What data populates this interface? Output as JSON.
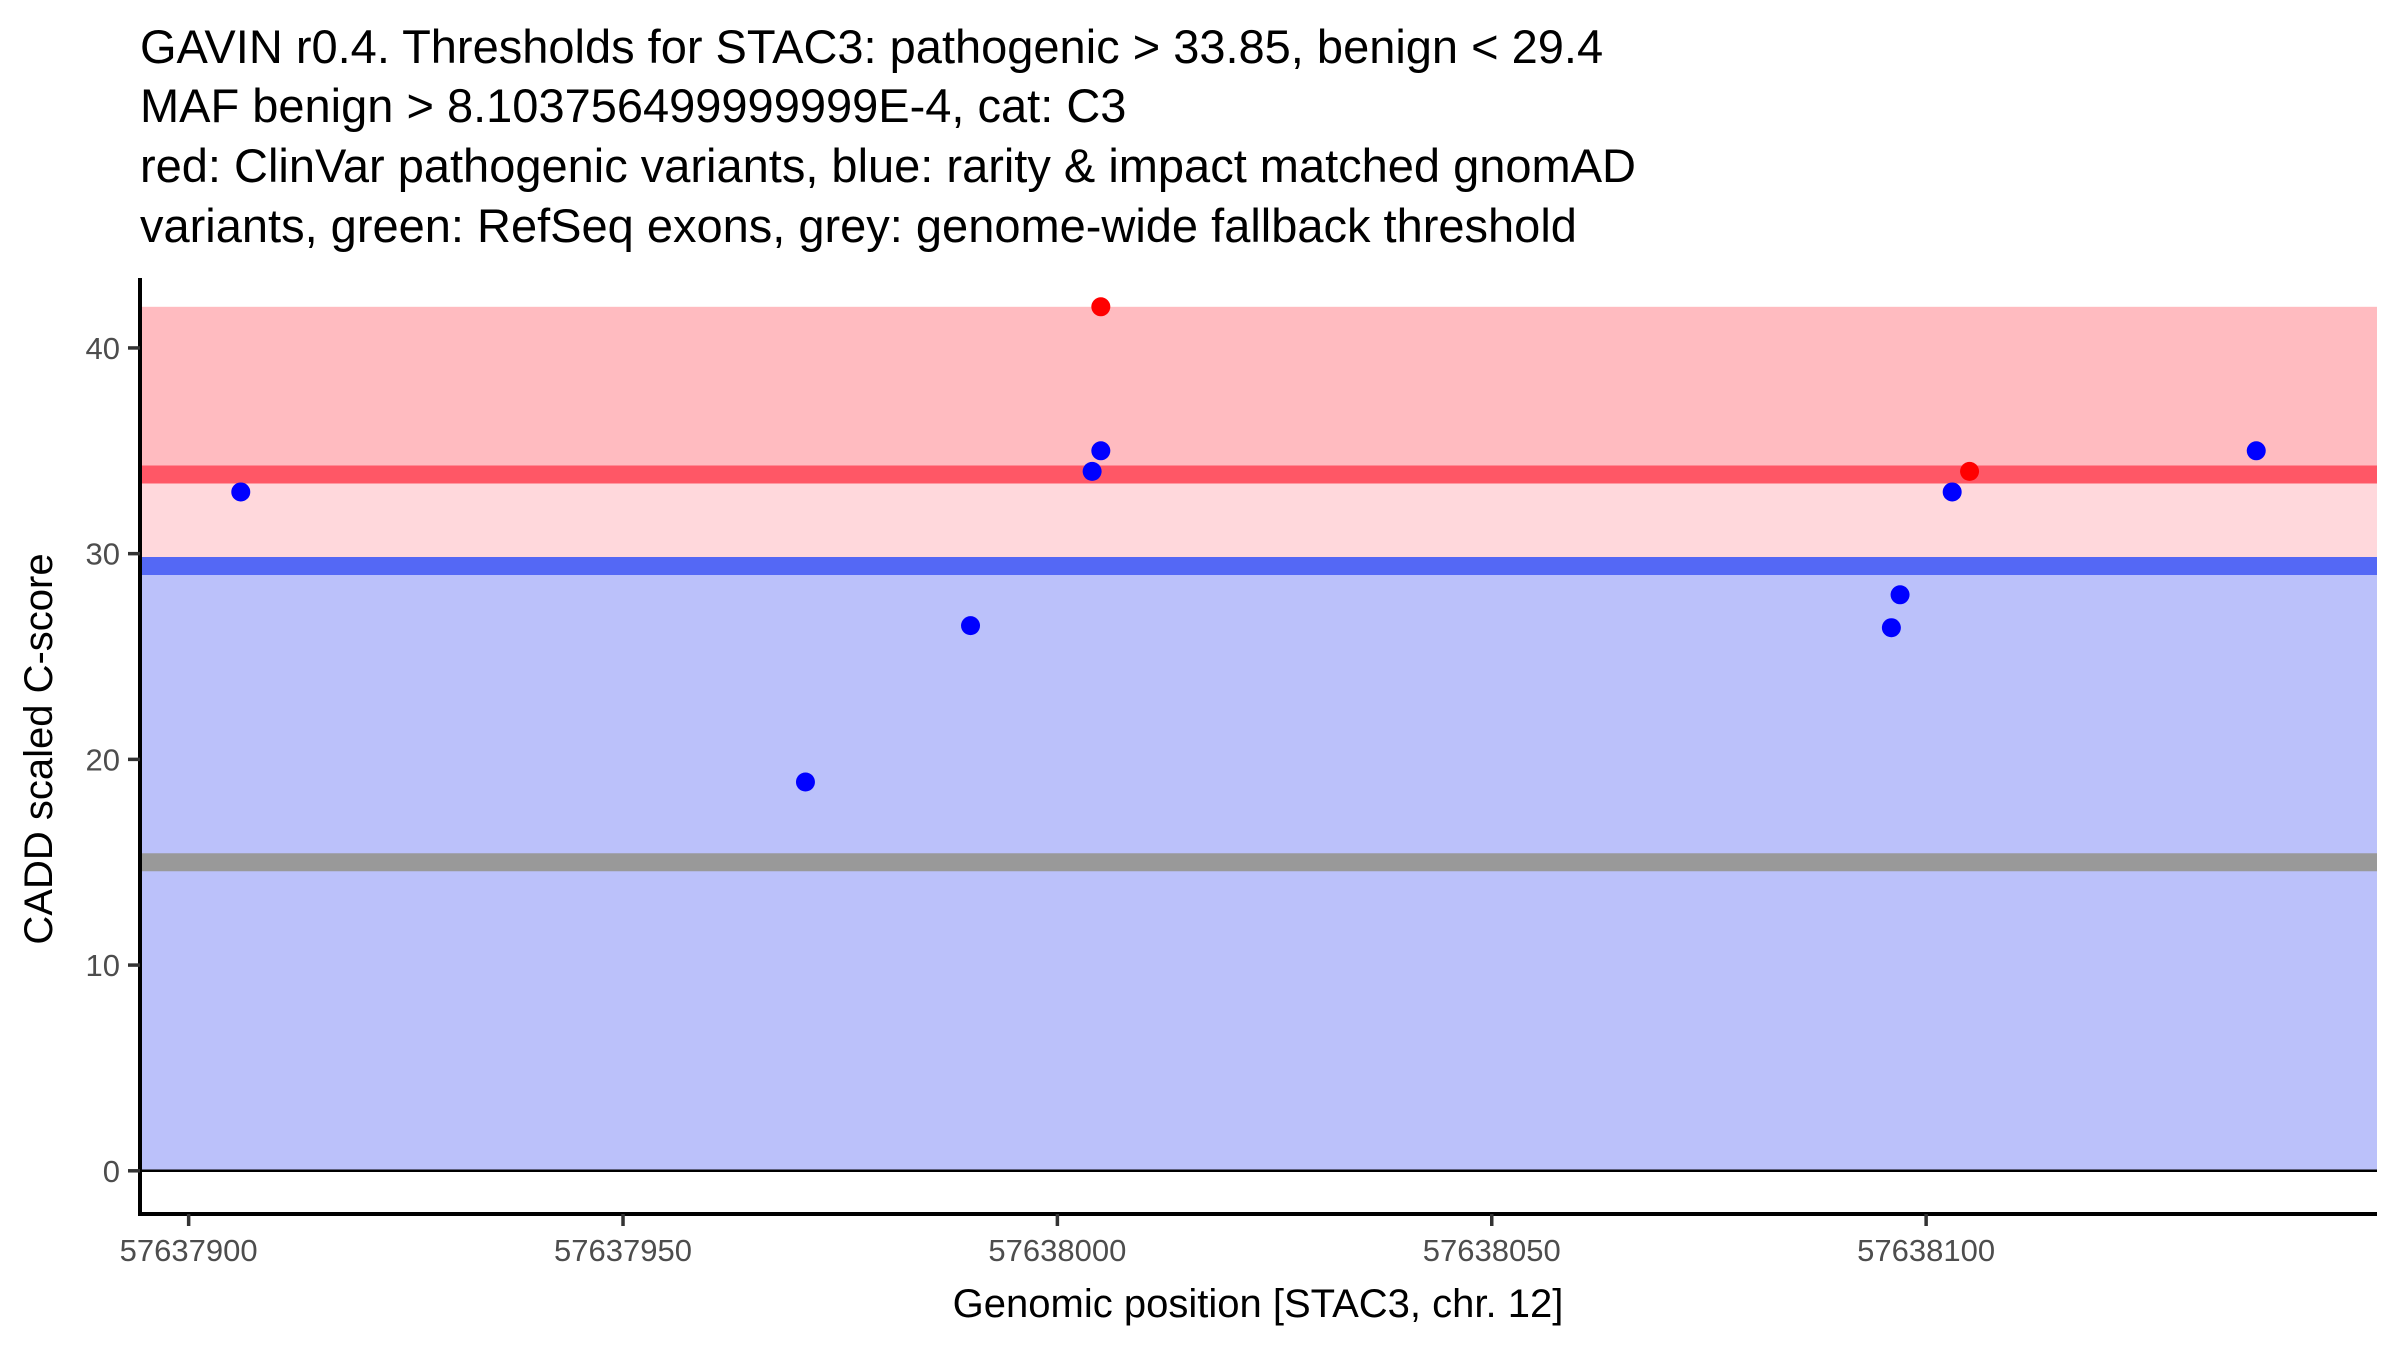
{
  "chart_data": {
    "type": "scatter",
    "title_lines": [
      "GAVIN r0.4. Thresholds for STAC3: pathogenic > 33.85, benign < 29.4",
      "MAF benign > 8.103756499999999E-4, cat: C3",
      "red: ClinVar pathogenic variants, blue: rarity & impact matched gnomAD",
      "variants, green: RefSeq exons, grey: genome-wide fallback threshold"
    ],
    "xlabel": "Genomic position [STAC3, chr. 12]",
    "ylabel": "CADD scaled C-score",
    "xlim": [
      57637894.4,
      57638151.9
    ],
    "ylim": [
      -2.1,
      43.4
    ],
    "x_ticks": [
      57637900,
      57637950,
      57638000,
      57638050,
      57638100
    ],
    "x_tick_labels": [
      "57637900",
      "57637950",
      "57638000",
      "57638050",
      "57638100"
    ],
    "y_ticks": [
      0,
      10,
      20,
      30,
      40
    ],
    "y_tick_labels": [
      "0",
      "10",
      "20",
      "30",
      "40"
    ],
    "grid": false,
    "legend": "none",
    "bands": [
      {
        "name": "pathogenic-region",
        "ymin": 33.85,
        "ymax": 42,
        "color": "#ffbbc0"
      },
      {
        "name": "intermediate-region",
        "ymin": 29.4,
        "ymax": 33.85,
        "color": "#ffd8dc"
      },
      {
        "name": "benign-region",
        "ymin": 0,
        "ymax": 29.4,
        "color": "#bbc1fa"
      }
    ],
    "threshold_lines": [
      {
        "name": "pathogenic-threshold",
        "y": 33.85,
        "color": "#ff5766"
      },
      {
        "name": "benign-threshold",
        "y": 29.4,
        "color": "#5468f5"
      },
      {
        "name": "genome-wide-fallback-threshold",
        "y": 15,
        "color": "#999999"
      }
    ],
    "zero_line": 0,
    "series": [
      {
        "name": "ClinVar pathogenic variants",
        "color": "#ff0000",
        "points": [
          {
            "x": 57638005,
            "y": 42
          },
          {
            "x": 57638105,
            "y": 34
          }
        ]
      },
      {
        "name": "rarity & impact matched gnomAD variants",
        "color": "#0000ff",
        "points": [
          {
            "x": 57637906,
            "y": 33
          },
          {
            "x": 57637971,
            "y": 18.9
          },
          {
            "x": 57637990,
            "y": 26.5
          },
          {
            "x": 57638004,
            "y": 34
          },
          {
            "x": 57638005,
            "y": 35
          },
          {
            "x": 57638096,
            "y": 26.4
          },
          {
            "x": 57638097,
            "y": 28
          },
          {
            "x": 57638103,
            "y": 33
          },
          {
            "x": 57638138,
            "y": 35
          }
        ]
      }
    ]
  }
}
